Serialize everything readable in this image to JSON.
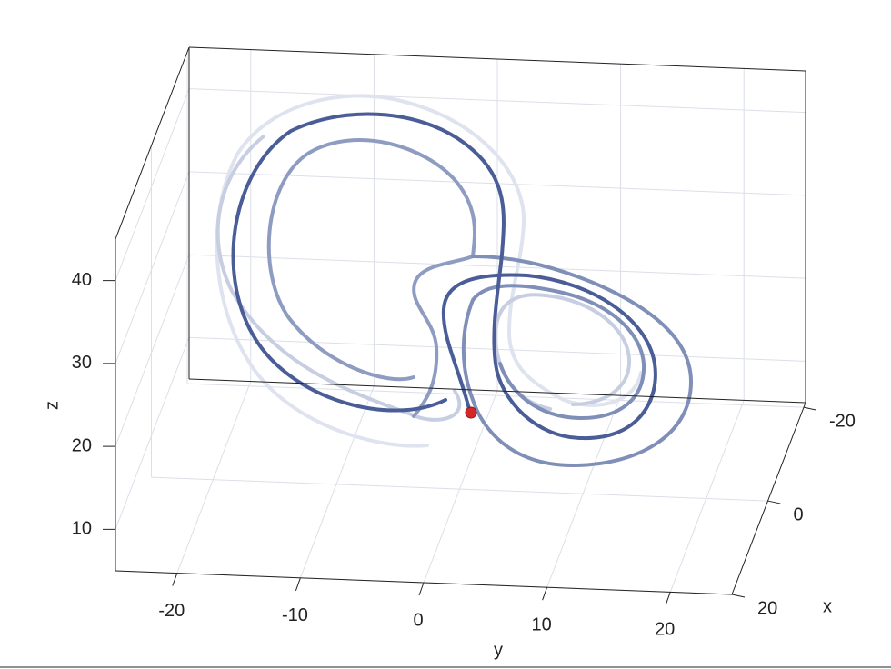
{
  "chart_data": {
    "type": "line3d",
    "xlabel": "x",
    "ylabel": "y",
    "zlabel": "z",
    "xlim": [
      -21,
      20
    ],
    "ylim": [
      -25,
      25
    ],
    "zlim": [
      5,
      45
    ],
    "xticks": [
      -20,
      0,
      20
    ],
    "yticks": [
      -20,
      -10,
      0,
      10,
      20
    ],
    "zticks": [
      10,
      20,
      30,
      40
    ],
    "grid": true
  }
}
